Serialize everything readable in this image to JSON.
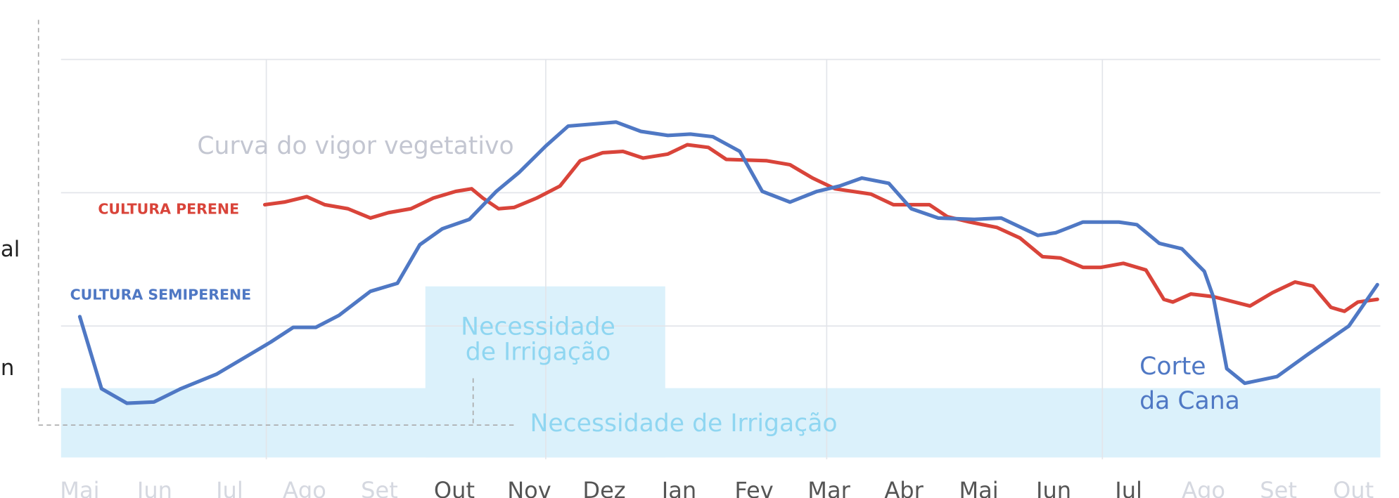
{
  "chart_data": {
    "type": "line",
    "categories": [
      "Mai",
      "Jun",
      "Jul",
      "Ago",
      "Set",
      "Out",
      "Nov",
      "Dez",
      "Jan",
      "Fev",
      "Mar",
      "Abr",
      "Mai",
      "Jun",
      "Jul",
      "Ago",
      "Set",
      "Out"
    ],
    "category_colors": [
      "#d5d8e0",
      "#d5d8e0",
      "#d5d8e0",
      "#d5d8e0",
      "#d5d8e0",
      "#555555",
      "#555555",
      "#555555",
      "#555555",
      "#555555",
      "#555555",
      "#555555",
      "#555555",
      "#555555",
      "#555555",
      "#d5d8e0",
      "#d5d8e0",
      "#d5d8e0"
    ],
    "xlim": [
      -0.25,
      17.36
    ],
    "ylim": [
      0,
      3
    ],
    "xticks": [
      2.49,
      6.22,
      9.97,
      13.65
    ],
    "yticks": [
      1,
      2,
      3
    ],
    "grid": true,
    "series": [
      {
        "name": "CULTURA PERENE",
        "color": "#d9443a",
        "x": [
          2.47,
          2.73,
          3.03,
          3.27,
          3.58,
          3.88,
          4.12,
          4.42,
          4.72,
          5.02,
          5.23,
          5.38,
          5.59,
          5.8,
          6.1,
          6.41,
          6.68,
          6.98,
          7.25,
          7.52,
          7.85,
          8.11,
          8.39,
          8.63,
          9.17,
          9.48,
          9.78,
          10.08,
          10.56,
          10.86,
          11.34,
          11.58,
          11.88,
          12.24,
          12.55,
          12.85,
          13.09,
          13.39,
          13.63,
          13.93,
          14.23,
          14.47,
          14.59,
          14.83,
          15.13,
          15.62,
          15.92,
          16.22,
          16.46,
          16.7,
          16.88,
          17.06,
          17.32
        ],
        "values": [
          1.91,
          1.93,
          1.97,
          1.91,
          1.88,
          1.81,
          1.85,
          1.88,
          1.96,
          2.01,
          2.03,
          1.96,
          1.88,
          1.89,
          1.96,
          2.05,
          2.24,
          2.3,
          2.31,
          2.26,
          2.29,
          2.36,
          2.34,
          2.25,
          2.24,
          2.21,
          2.11,
          2.03,
          1.99,
          1.91,
          1.91,
          1.82,
          1.78,
          1.74,
          1.66,
          1.52,
          1.51,
          1.44,
          1.44,
          1.47,
          1.42,
          1.2,
          1.18,
          1.24,
          1.22,
          1.15,
          1.25,
          1.33,
          1.3,
          1.14,
          1.11,
          1.18,
          1.2
        ]
      },
      {
        "name": "CULTURA SEMIPERENE",
        "color": "#4f78c4",
        "x": [
          0,
          0.29,
          0.63,
          0.99,
          1.35,
          1.83,
          2.25,
          2.55,
          2.85,
          3.15,
          3.46,
          3.88,
          4.24,
          4.54,
          4.84,
          5.2,
          5.56,
          5.86,
          6.22,
          6.52,
          7.16,
          7.49,
          7.85,
          8.15,
          8.45,
          8.81,
          9.11,
          9.48,
          9.84,
          10.14,
          10.44,
          10.8,
          11.1,
          11.46,
          11.94,
          12.3,
          12.79,
          13.03,
          13.39,
          13.87,
          14.11,
          14.41,
          14.71,
          15.01,
          15.13,
          15.31,
          15.55,
          15.98,
          16.4,
          16.94,
          17.32
        ],
        "values": [
          1.07,
          0.53,
          0.42,
          0.43,
          0.53,
          0.64,
          0.78,
          0.88,
          0.99,
          0.99,
          1.08,
          1.26,
          1.32,
          1.61,
          1.73,
          1.8,
          2.01,
          2.15,
          2.35,
          2.5,
          2.53,
          2.46,
          2.43,
          2.44,
          2.42,
          2.31,
          2.01,
          1.93,
          2.01,
          2.05,
          2.11,
          2.07,
          1.88,
          1.81,
          1.8,
          1.81,
          1.68,
          1.7,
          1.78,
          1.78,
          1.76,
          1.62,
          1.58,
          1.41,
          1.22,
          0.68,
          0.57,
          0.62,
          0.79,
          1.0,
          1.31
        ]
      }
    ],
    "annotations": [
      "Curva do vigor vegetativo",
      "Necessidade",
      "de Irrigação",
      "Necessidade de Irrigação",
      "Corte",
      "da Cana",
      "al",
      "n"
    ]
  }
}
